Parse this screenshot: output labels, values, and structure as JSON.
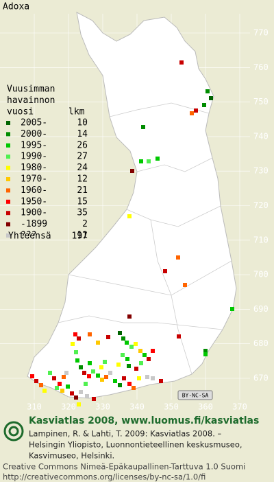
{
  "title": "Adoxa",
  "legend": {
    "heading": [
      "Vuusimman",
      "havainnon",
      "vuosi"
    ],
    "count_heading": "lkm",
    "rows": [
      {
        "label": "2005-",
        "count": "10",
        "color": "#006400"
      },
      {
        "label": "2000-",
        "count": "14",
        "color": "#008c00"
      },
      {
        "label": "1995-",
        "count": "26",
        "color": "#00c800"
      },
      {
        "label": "1990-",
        "count": "27",
        "color": "#50f050"
      },
      {
        "label": "1980-",
        "count": "24",
        "color": "#ffff00"
      },
      {
        "label": "1970-",
        "count": "12",
        "color": "#ffc800"
      },
      {
        "label": "1960-",
        "count": "21",
        "color": "#ff6400"
      },
      {
        "label": "1950-",
        "count": "15",
        "color": "#ff0000"
      },
      {
        "label": "1900-",
        "count": "35",
        "color": "#c80000"
      },
      {
        "label": "-1899",
        "count": "2",
        "color": "#820000"
      },
      {
        "label": "???",
        "count": "11",
        "color": "#c8c8c8"
      }
    ],
    "total_label": "Yhteensä",
    "total": "197"
  },
  "grid_y_labels": [
    "770",
    "760",
    "750",
    "740",
    "730",
    "720",
    "710",
    "700",
    "690",
    "680",
    "670"
  ],
  "grid_x_labels": [
    "310",
    "320",
    "330",
    "340",
    "350",
    "360",
    "370"
  ],
  "license_badge": "BY-NC-SA",
  "footer": {
    "brand": "Kasviatlas 2008, www.luomus.fi/kasviatlas",
    "citation": [
      "Lampinen, R. & Lahti, T. 2009: Kasviatlas 2008. –",
      "Helsingin Yliopisto, Luonnontieteellinen keskusmuseo,",
      "Kasvimuseo, Helsinki."
    ],
    "license": [
      "Creative Commons Nimeä-Epäkaupallinen-Tarttuva 1.0 Suomi",
      "http://creativecommons.org/licenses/by-nc-sa/1.0/fi"
    ]
  }
}
